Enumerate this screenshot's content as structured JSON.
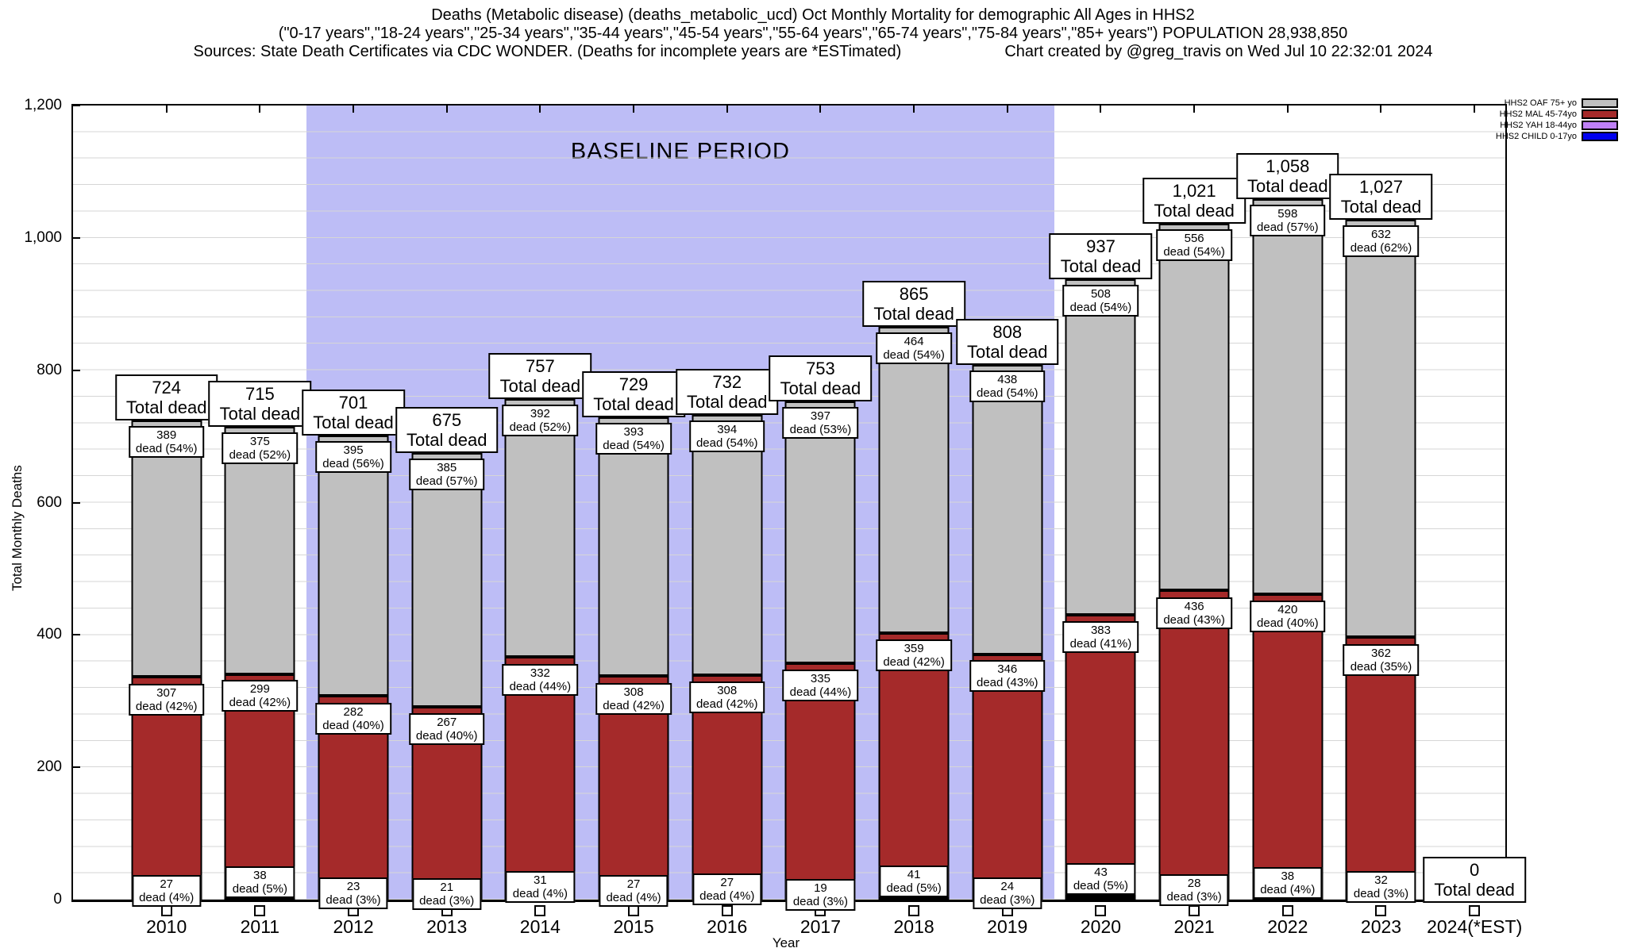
{
  "header": {
    "title_line1": "Deaths (Metabolic disease) (deaths_metabolic_ucd) Oct Monthly Mortality for demographic All Ages in HHS2",
    "title_line2": "(\"0-17 years\",\"18-24 years\",\"25-34 years\",\"35-44 years\",\"45-54 years\",\"55-64 years\",\"65-74 years\",\"75-84 years\",\"85+ years\") POPULATION 28,938,850",
    "sources": "Sources: State Death Certificates via CDC WONDER. (Deaths for incomplete years are *ESTimated)",
    "credit": "Chart created by @greg_travis on Wed Jul 10 22:32:01 2024"
  },
  "legend": {
    "items": [
      {
        "label": "HHS2 OAF 75+ yo",
        "color": "#c0c0c0"
      },
      {
        "label": "HHS2 MAL 45-74yo",
        "color": "#a52a2a"
      },
      {
        "label": "HHS2 YAH 18-44yo",
        "color": "#bf80f7"
      },
      {
        "label": "HHS2 CHILD 0-17yo",
        "color": "#0000ee"
      }
    ]
  },
  "chart_data": {
    "type": "bar",
    "stacked": true,
    "title": "Deaths (Metabolic disease) Oct Monthly Mortality for demographic All Ages in HHS2",
    "xlabel": "Year",
    "ylabel": "Total Monthly Deaths",
    "ylim": [
      0,
      1200
    ],
    "yticks": [
      0,
      200,
      400,
      600,
      800,
      1000,
      1200
    ],
    "ytick_labels": [
      "0",
      "200",
      "400",
      "600",
      "800",
      "1,000",
      "1,200"
    ],
    "grid": "horizontal minor gridlines every 40 units",
    "legend_position": "top-right outside plot",
    "x_slots": 15.33,
    "baseline_region": {
      "label": "BASELINE PERIOD",
      "from_year": 2012,
      "to_year": 2019,
      "color": "#bdbdf6"
    },
    "categories": [
      "2010",
      "2011",
      "2012",
      "2013",
      "2014",
      "2015",
      "2016",
      "2017",
      "2018",
      "2019",
      "2020",
      "2021",
      "2022",
      "2023",
      "2024(*EST)"
    ],
    "totals": [
      724,
      715,
      701,
      675,
      757,
      729,
      732,
      753,
      865,
      808,
      937,
      1021,
      1058,
      1027,
      0
    ],
    "total_labels": [
      "724",
      "715",
      "701",
      "675",
      "757",
      "729",
      "732",
      "753",
      "865",
      "808",
      "937",
      "1,021",
      "1,058",
      "1,027",
      "0"
    ],
    "total_label_text": "Total dead",
    "segment_label_format": "dead ({pct})",
    "series": [
      {
        "name": "HHS2 CHILD 0-17yo",
        "short": "child",
        "color": "#0000ee",
        "values": [
          1,
          3,
          1,
          2,
          2,
          1,
          3,
          2,
          1,
          0,
          3,
          1,
          2,
          1,
          0
        ],
        "pcts": [
          "",
          "",
          "",
          "",
          "",
          "",
          "",
          "",
          "",
          "",
          "",
          "",
          "",
          "",
          ""
        ]
      },
      {
        "name": "HHS2 YAH 18-44yo",
        "short": "yah",
        "color": "#bf80f7",
        "values": [
          27,
          38,
          23,
          21,
          31,
          27,
          27,
          19,
          41,
          24,
          43,
          28,
          38,
          32,
          0
        ],
        "pcts": [
          "4%",
          "5%",
          "3%",
          "3%",
          "4%",
          "4%",
          "4%",
          "3%",
          "5%",
          "3%",
          "5%",
          "3%",
          "4%",
          "3%",
          ""
        ]
      },
      {
        "name": "HHS2 MAL 45-74yo",
        "short": "mal",
        "color": "#a52a2a",
        "values": [
          307,
          299,
          282,
          267,
          332,
          308,
          308,
          335,
          359,
          346,
          383,
          436,
          420,
          362,
          0
        ],
        "pcts": [
          "42%",
          "42%",
          "40%",
          "40%",
          "44%",
          "42%",
          "42%",
          "44%",
          "42%",
          "43%",
          "41%",
          "43%",
          "40%",
          "35%",
          ""
        ]
      },
      {
        "name": "HHS2 OAF 75+ yo",
        "short": "oaf",
        "color": "#c0c0c0",
        "values": [
          389,
          375,
          395,
          385,
          392,
          393,
          394,
          397,
          464,
          438,
          508,
          556,
          598,
          632,
          0
        ],
        "pcts": [
          "54%",
          "52%",
          "56%",
          "57%",
          "52%",
          "54%",
          "54%",
          "53%",
          "54%",
          "54%",
          "54%",
          "54%",
          "57%",
          "62%",
          ""
        ]
      }
    ]
  }
}
